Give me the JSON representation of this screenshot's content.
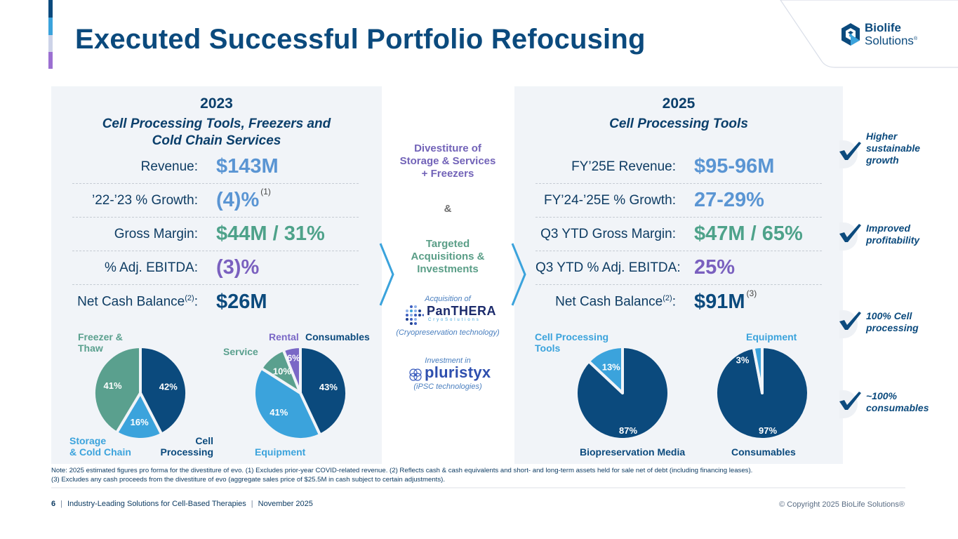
{
  "title": "Executed Successful Portfolio Refocusing",
  "logo": {
    "line1": "Biolife",
    "line2": "Solutions",
    "reg": "®"
  },
  "colors": {
    "navy": "#0b4a7d",
    "light_blue": "#3ba3dc",
    "teal": "#5aa08e",
    "purple": "#7a68c6",
    "value_blue": "#5a95d3",
    "value_green": "#4ea28a",
    "value_purple": "#7a60bf"
  },
  "left_panel": {
    "year": "2023",
    "subtitle_line1": "Cell Processing Tools, Freezers and",
    "subtitle_line2": "Cold Chain Services",
    "metrics": [
      {
        "label": "Revenue:",
        "value": "$143M",
        "note": ""
      },
      {
        "label": "’22-’23 % Growth:",
        "value": "(4)%",
        "note": "(1)"
      },
      {
        "label": "Gross Margin:",
        "value": "$44M / 31%",
        "note": ""
      },
      {
        "label": "% Adj. EBITDA:",
        "value": "(3)%",
        "note": ""
      },
      {
        "label": "Net Cash Balance",
        "label_sup": "(2)",
        "label_suffix": ":",
        "value": "$26M",
        "note": ""
      }
    ]
  },
  "right_panel": {
    "year": "2025",
    "subtitle_line1": "Cell Processing Tools",
    "metrics": [
      {
        "label": "FY’25E Revenue:",
        "value": "$95-96M",
        "note": ""
      },
      {
        "label": "FY’24-’25E % Growth:",
        "value": "27-29%",
        "note": ""
      },
      {
        "label": "Q3 YTD Gross Margin:",
        "value": "$47M / 65%",
        "note": ""
      },
      {
        "label": "Q3 YTD % Adj. EBITDA:",
        "value": "25%",
        "note": ""
      },
      {
        "label": "Net Cash Balance",
        "label_sup": "(2)",
        "label_suffix": ":",
        "value": "$91M",
        "note": "(3)"
      }
    ]
  },
  "middle": {
    "divestiture": [
      "Divestiture of",
      "Storage & Services",
      "+ Freezers"
    ],
    "ampersand": "&",
    "acquisitions": [
      "Targeted",
      "Acquisitions &",
      "Investments"
    ],
    "acq_intro": "Acquisition of",
    "panthera_name": "PanTHERA",
    "panthera_sub": "C r y o S o l u t i o n s",
    "panthera_desc": "(Cryopreservation technology)",
    "inv_intro": "Investment in",
    "pluristyx_name": "pluristyx",
    "pluristyx_desc": "(iPSC technologies)"
  },
  "chart_data": [
    {
      "type": "pie",
      "title": "2023 revenue by business",
      "slices": [
        {
          "label": "Cell Processing",
          "value": 42,
          "display": "42%",
          "color": "#0b4a7d"
        },
        {
          "label": "Storage & Cold Chain",
          "value": 16,
          "display": "16%",
          "color": "#3ba3dc"
        },
        {
          "label": "Freezer & Thaw",
          "value": 41,
          "display": "41%",
          "color": "#5aa08e"
        }
      ],
      "legend_labels": [
        {
          "text": "Freezer &\nThaw",
          "color": "#5aa08e"
        },
        {
          "text": "Storage\n& Cold Chain",
          "color": "#3ba3dc"
        },
        {
          "text": "Cell\nProcessing",
          "color": "#0b4a7d"
        }
      ]
    },
    {
      "type": "pie",
      "title": "2023 revenue by type",
      "slices": [
        {
          "label": "Consumables",
          "value": 43,
          "display": "43%",
          "color": "#0b4a7d"
        },
        {
          "label": "Equipment",
          "value": 41,
          "display": "41%",
          "color": "#3ba3dc"
        },
        {
          "label": "Service",
          "value": 10,
          "display": "10%",
          "color": "#5aa08e"
        },
        {
          "label": "Rental",
          "value": 6,
          "display": "6%",
          "color": "#7a68c6"
        }
      ],
      "legend_labels": [
        {
          "text": "Rental",
          "color": "#7a68c6"
        },
        {
          "text": "Consumables",
          "color": "#0b4a7d"
        },
        {
          "text": "Service",
          "color": "#5aa08e"
        },
        {
          "text": "Equipment",
          "color": "#3ba3dc"
        }
      ]
    },
    {
      "type": "pie",
      "title": "2025 revenue by business",
      "slices": [
        {
          "label": "Biopreservation Media",
          "value": 87,
          "display": "87%",
          "color": "#0b4a7d"
        },
        {
          "label": "Cell Processing Tools",
          "value": 13,
          "display": "13%",
          "color": "#3ba3dc"
        }
      ],
      "legend_labels": [
        {
          "text": "Cell Processing\nTools",
          "color": "#3ba3dc"
        },
        {
          "text": "Biopreservation Media",
          "color": "#0b4a7d"
        }
      ]
    },
    {
      "type": "pie",
      "title": "2025 revenue by type",
      "slices": [
        {
          "label": "Consumables",
          "value": 97,
          "display": "97%",
          "color": "#0b4a7d"
        },
        {
          "label": "Equipment",
          "value": 3,
          "display": "3%",
          "color": "#3ba3dc"
        }
      ],
      "legend_labels": [
        {
          "text": "Equipment",
          "color": "#3ba3dc"
        },
        {
          "text": "Consumables",
          "color": "#0b4a7d"
        }
      ]
    }
  ],
  "outcomes": [
    {
      "icon": "check-icon",
      "text": "Higher\nsustainable\ngrowth"
    },
    {
      "icon": "check-icon",
      "text": "Improved\nprofitability"
    },
    {
      "icon": "check-icon",
      "text": "100% Cell\nprocessing"
    },
    {
      "icon": "check-icon",
      "text": "~100%\nconsumables"
    }
  ],
  "note": "Note: 2025 estimated figures pro forma for the divestiture of evo. (1) Excludes prior-year COVID-related revenue. (2) Reflects cash & cash equivalents and short- and long-term assets held for sale net of debt (including financing leases). (3) Excludes any cash proceeds from the divestiture of evo (aggregate sales price of $25.5M in cash subject to certain adjustments).",
  "footer": {
    "page": "6",
    "separator": "|",
    "tagline": "Industry-Leading Solutions for Cell-Based Therapies",
    "date": "November 2025",
    "copyright": "© Copyright 2025 BioLife Solutions®"
  }
}
